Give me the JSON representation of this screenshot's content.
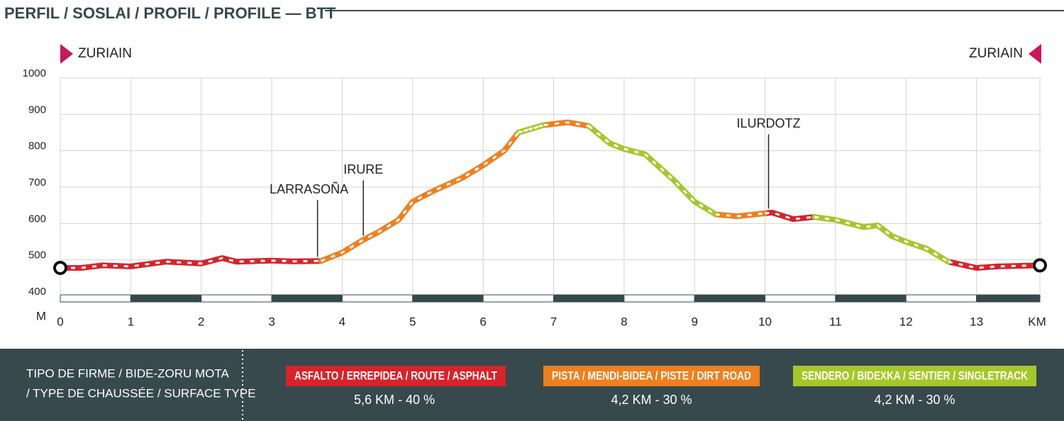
{
  "chart_data": {
    "type": "line",
    "title": "PERFIL / SOSLAI / PROFIL / PROFILE — BTT",
    "x_label": "KM",
    "y_label": "M",
    "x": [
      0,
      0.3,
      0.6,
      1.0,
      1.5,
      2.0,
      2.3,
      2.5,
      3.0,
      3.3,
      3.7,
      4.0,
      4.3,
      4.5,
      4.8,
      5.0,
      5.3,
      5.7,
      6.0,
      6.3,
      6.5,
      6.85,
      7.2,
      7.5,
      7.8,
      8.0,
      8.3,
      8.5,
      8.7,
      9.0,
      9.3,
      9.6,
      10.0,
      10.1,
      10.4,
      10.7,
      11.0,
      11.4,
      11.6,
      11.8,
      12.0,
      12.3,
      12.6,
      13.0,
      13.3,
      13.9
    ],
    "series": [
      {
        "name": "ASFALTO / ERREPIDEA / ROUTE / ASPHALT",
        "color": "#d7232a",
        "summary": "5,6 KM - 40 %",
        "values": [
          478,
          478,
          485,
          482,
          495,
          490,
          505,
          495,
          498,
          496,
          497,
          null,
          null,
          null,
          null,
          null,
          null,
          null,
          null,
          null,
          null,
          null,
          null,
          null,
          null,
          null,
          null,
          null,
          null,
          null,
          null,
          null,
          628,
          630,
          612,
          618,
          null,
          null,
          null,
          null,
          null,
          null,
          495,
          478,
          482,
          485
        ]
      },
      {
        "name": "PISTA / MENDI-BIDEA / PISTE / DIRT ROAD",
        "color": "#f07f1e",
        "summary": "4,2 KM - 30 %",
        "values": [
          null,
          null,
          null,
          null,
          null,
          null,
          null,
          null,
          null,
          null,
          497,
          520,
          555,
          575,
          610,
          660,
          690,
          725,
          760,
          800,
          850,
          870,
          878,
          868,
          null,
          null,
          null,
          null,
          null,
          null,
          625,
          620,
          628,
          null,
          null,
          null,
          null,
          null,
          null,
          null,
          null,
          null,
          null,
          null,
          null,
          null
        ]
      },
      {
        "name": "SENDERO  / BIDEXKA / SENTIER / SINGLETRACK",
        "color": "#a6c72a",
        "summary": "4,2 KM - 30 %",
        "values": [
          null,
          null,
          null,
          null,
          null,
          null,
          null,
          null,
          null,
          null,
          null,
          null,
          null,
          null,
          null,
          null,
          null,
          null,
          null,
          null,
          850,
          870,
          null,
          868,
          820,
          805,
          790,
          755,
          720,
          660,
          625,
          null,
          null,
          null,
          null,
          618,
          610,
          590,
          595,
          565,
          550,
          530,
          495,
          null,
          null,
          null
        ]
      }
    ],
    "xlim": [
      0,
      13.9
    ],
    "ylim": [
      400,
      1000
    ],
    "xticks": [
      0,
      1,
      2,
      3,
      4,
      5,
      6,
      7,
      8,
      9,
      10,
      11,
      12,
      13
    ],
    "yticks": [
      400,
      500,
      600,
      700,
      800,
      900,
      1000
    ],
    "grid": true,
    "start_label": "ZURIAIN",
    "end_label": "ZURIAIN",
    "annotations": [
      {
        "text": "LARRASOÑA",
        "x": 3.65,
        "y": 497
      },
      {
        "text": "IRURE",
        "x": 4.3,
        "y": 555
      },
      {
        "text": "ILURDOTZ",
        "x": 10.05,
        "y": 629
      }
    ],
    "legend_title": [
      "TIPO DE FIRME / BIDE-ZORU MOTA",
      "/ TYPE DE CHAUSSÉE / SURFACE TYPE"
    ]
  }
}
